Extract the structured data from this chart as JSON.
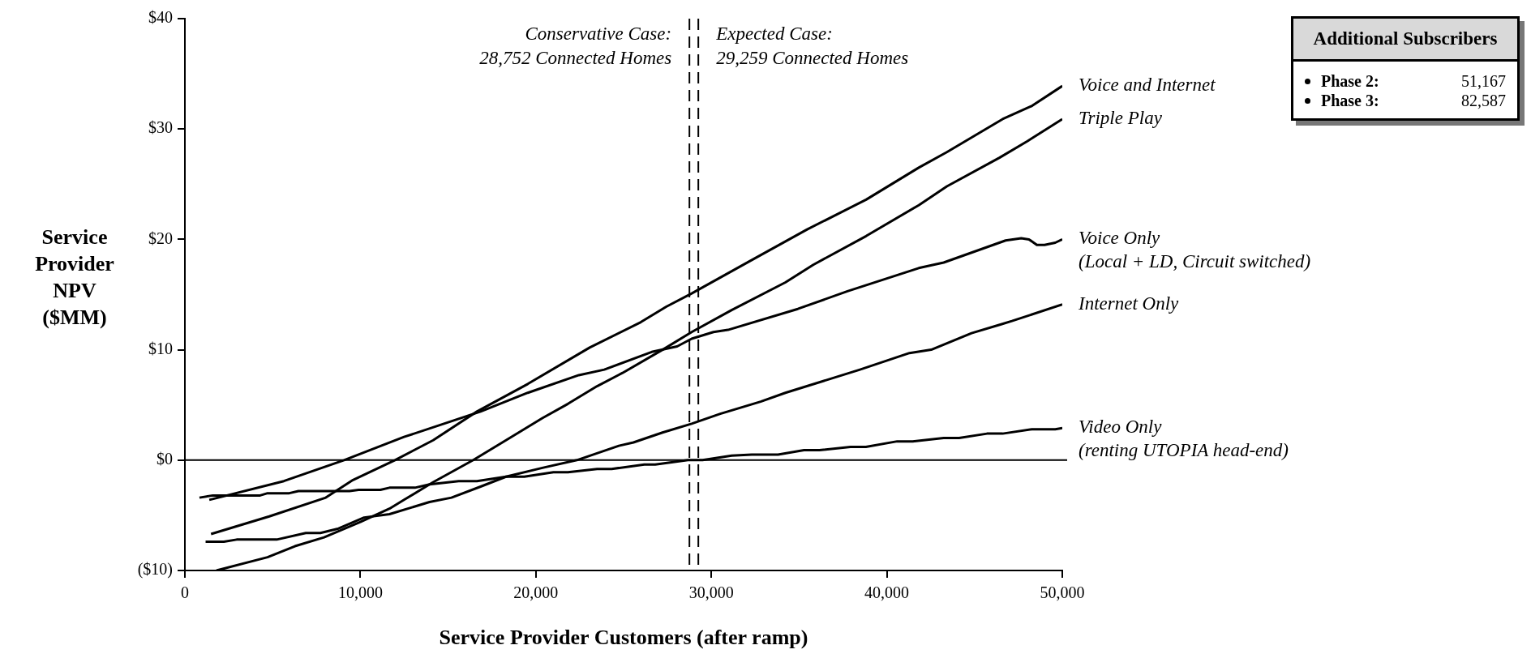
{
  "chart_data": {
    "type": "line",
    "xlabel": "Service Provider Customers (after ramp)",
    "ylabel": "Service Provider NPV ($MM)",
    "xlim": [
      0,
      50000
    ],
    "xticks": [
      0,
      {
        "value": 10000,
        "label": "10,000"
      },
      {
        "value": 20000,
        "label": "20,000"
      },
      {
        "value": 30000,
        "label": "30,000"
      },
      {
        "value": 40000,
        "label": "40,000"
      },
      {
        "value": 50000,
        "label": "50,000"
      }
    ],
    "ylim": [
      -10,
      40
    ],
    "yticks": [
      {
        "value": -10,
        "label": "($10)"
      },
      {
        "value": 0,
        "label": "$0"
      },
      {
        "value": 10,
        "label": "$10"
      },
      {
        "value": 20,
        "label": "$20"
      },
      {
        "value": 30,
        "label": "$30"
      },
      {
        "value": 40,
        "label": "$40"
      }
    ],
    "grid": false,
    "legend": false,
    "marker": "none",
    "line_style": "solid",
    "series": [
      {
        "name": "Voice and Internet",
        "color": "#000000",
        "x": [
          1490,
          4810,
          8030,
          9580,
          11970,
          14150,
          16640,
          19540,
          23070,
          25980,
          27430,
          28880,
          32160,
          35460,
          38820,
          41820,
          43420,
          46600,
          48280,
          50000
        ],
        "values": [
          -6.7,
          -5.1,
          -3.4,
          -1.8,
          0,
          1.8,
          4.4,
          6.9,
          10.2,
          12.5,
          13.9,
          15.1,
          18.0,
          20.9,
          23.6,
          26.5,
          27.9,
          30.9,
          32.1,
          33.9
        ]
      },
      {
        "name": "Triple Play",
        "color": "#000000",
        "x": [
          1800,
          4710,
          6270,
          7930,
          10000,
          11660,
          12490,
          14150,
          16430,
          18300,
          20370,
          21830,
          23490,
          24940,
          27220,
          28880,
          31160,
          34220,
          35810,
          38820,
          41820,
          43420,
          46420,
          48010,
          50000
        ],
        "values": [
          -10,
          -8.8,
          -7.8,
          -7.0,
          -5.6,
          -4.4,
          -3.6,
          -2.0,
          0,
          1.8,
          3.8,
          5.1,
          6.7,
          7.9,
          10.0,
          11.6,
          13.6,
          16.1,
          17.7,
          20.3,
          23.1,
          24.8,
          27.4,
          28.9,
          30.9
        ]
      },
      {
        "name": "Voice Only\n(Local + LD, Circuit switched)",
        "color": "#000000",
        "x": [
          1390,
          5640,
          9070,
          12490,
          16850,
          19540,
          22450,
          23900,
          26600,
          28050,
          28880,
          30120,
          30950,
          34930,
          37760,
          41820,
          43240,
          46770,
          47660,
          48100,
          48550,
          48990,
          49600,
          50000
        ],
        "values": [
          -3.6,
          -1.9,
          0,
          2.1,
          4.4,
          6.1,
          7.7,
          8.2,
          9.8,
          10.3,
          11.0,
          11.6,
          11.8,
          13.7,
          15.3,
          17.4,
          17.9,
          19.9,
          20.1,
          20.0,
          19.5,
          19.5,
          19.7,
          20.0
        ]
      },
      {
        "name": "Internet Only",
        "color": "#000000",
        "x": [
          1180,
          2220,
          2950,
          5230,
          6890,
          7720,
          8760,
          10210,
          11660,
          13940,
          15190,
          16850,
          18300,
          20370,
          22340,
          24730,
          25560,
          27220,
          28880,
          30510,
          32810,
          34220,
          38470,
          41290,
          42530,
          44830,
          46510,
          47130,
          50000
        ],
        "values": [
          -7.4,
          -7.4,
          -7.2,
          -7.2,
          -6.6,
          -6.6,
          -6.2,
          -5.2,
          -4.9,
          -3.8,
          -3.4,
          -2.4,
          -1.5,
          -0.7,
          0,
          1.3,
          1.6,
          2.5,
          3.3,
          4.2,
          5.3,
          6.1,
          8.2,
          9.7,
          10.0,
          11.5,
          12.3,
          12.6,
          14.1
        ]
      },
      {
        "name": "Video Only\n(renting UTOPIA head-end)",
        "color": "#000000",
        "x": [
          830,
          1600,
          4290,
          4710,
          5950,
          6470,
          9380,
          9900,
          11140,
          11660,
          13110,
          13940,
          15600,
          16640,
          18300,
          19340,
          21000,
          21830,
          23490,
          24320,
          26180,
          26800,
          28670,
          29500,
          31160,
          32300,
          33800,
          35280,
          36160,
          37930,
          38810,
          40590,
          41470,
          43240,
          44120,
          45710,
          46600,
          48280,
          49600,
          50000
        ],
        "values": [
          -3.4,
          -3.2,
          -3.2,
          -3.0,
          -3.0,
          -2.8,
          -2.8,
          -2.7,
          -2.7,
          -2.5,
          -2.5,
          -2.2,
          -1.9,
          -1.9,
          -1.5,
          -1.5,
          -1.1,
          -1.1,
          -0.8,
          -0.8,
          -0.4,
          -0.4,
          0,
          0,
          0.4,
          0.5,
          0.5,
          0.9,
          0.9,
          1.2,
          1.2,
          1.7,
          1.7,
          2.0,
          2.0,
          2.4,
          2.4,
          2.8,
          2.8,
          2.9
        ]
      }
    ],
    "ref_lines": [
      {
        "axis": "x",
        "value": 28752,
        "label": "Conservative Case:\n28,752 Connected Homes",
        "line_style": "dashed",
        "color": "#000000"
      },
      {
        "axis": "x",
        "value": 29259,
        "label": "Expected Case:\n29,259 Connected Homes",
        "line_style": "dashed",
        "color": "#000000"
      },
      {
        "axis": "y",
        "value": 0,
        "line_style": "solid",
        "color": "#000000"
      }
    ],
    "annotations": [
      "Additional Subscribers",
      "Phase 2:",
      "51,167",
      "Phase 3:",
      "82,587"
    ]
  }
}
